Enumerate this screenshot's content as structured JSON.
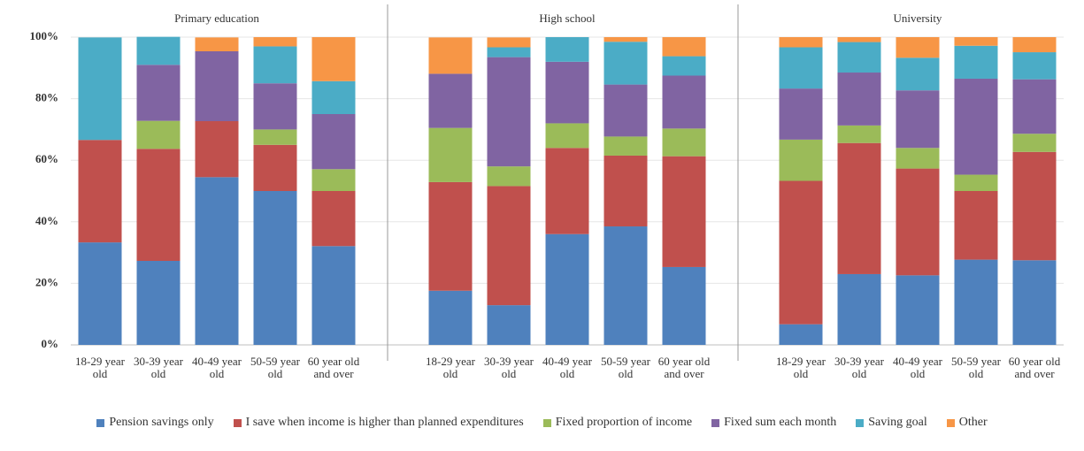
{
  "chart_data": {
    "type": "bar",
    "stacked": true,
    "ylim": [
      0,
      100
    ],
    "yticks": [
      {
        "value": 0,
        "label": "0%"
      },
      {
        "value": 20,
        "label": "20%"
      },
      {
        "value": 40,
        "label": "40%"
      },
      {
        "value": 60,
        "label": "60%"
      },
      {
        "value": 80,
        "label": "80%"
      },
      {
        "value": 100,
        "label": "100%"
      }
    ],
    "grid": true,
    "panels": [
      {
        "title": "Primary education",
        "categories": [
          "18-29 year old",
          "30-39 year old",
          "40-49 year old",
          "50-59 year old",
          "60 year old and over"
        ]
      },
      {
        "title": "High school",
        "categories": [
          "18-29 year old",
          "30-39 year old",
          "40-49 year old",
          "50-59 year old",
          "60 year old and over"
        ]
      },
      {
        "title": "University",
        "categories": [
          "18-29 year old",
          "30-39 year old",
          "40-49 year old",
          "50-59 year old",
          "60 year old and over"
        ]
      }
    ],
    "series": [
      {
        "name": "Pension savings only",
        "color": "#4f81bd",
        "values": [
          [
            33.3,
            27.3,
            54.5,
            50,
            32.1
          ],
          [
            17.6,
            12.9,
            36,
            38.5,
            25.3
          ],
          [
            6.7,
            23,
            22.6,
            27.7,
            27.5
          ]
        ]
      },
      {
        "name": "I save when income is higher than planned expenditures",
        "color": "#c0504d",
        "values": [
          [
            33.3,
            36.4,
            18.2,
            15,
            17.9
          ],
          [
            35.3,
            38.7,
            28,
            23,
            36
          ],
          [
            46.6,
            42.6,
            34.7,
            22.3,
            35.2
          ]
        ]
      },
      {
        "name": "Fixed proportion of income",
        "color": "#9bbb59",
        "values": [
          [
            0,
            9.1,
            0,
            5,
            7.1
          ],
          [
            17.6,
            6.4,
            8,
            6.2,
            9
          ],
          [
            13.4,
            5.7,
            6.7,
            5.3,
            5.9
          ]
        ]
      },
      {
        "name": "Fixed sum each month",
        "color": "#8064a2",
        "values": [
          [
            0,
            18.2,
            22.7,
            15,
            17.9
          ],
          [
            17.6,
            35.5,
            20,
            16.9,
            17.2
          ],
          [
            16.6,
            17.2,
            18.7,
            31.2,
            17.7
          ]
        ]
      },
      {
        "name": "Saving goal",
        "color": "#4bacc6",
        "values": [
          [
            33.3,
            9.1,
            0,
            12,
            10.7
          ],
          [
            0,
            3.2,
            8,
            13.9,
            6.3
          ],
          [
            13.4,
            9.9,
            10.6,
            10.7,
            8.8
          ]
        ]
      },
      {
        "name": "Other",
        "color": "#f79646",
        "values": [
          [
            0,
            0,
            4.5,
            3,
            14.3
          ],
          [
            11.8,
            3.2,
            0,
            1.5,
            6.2
          ],
          [
            3.3,
            1.6,
            6.7,
            2.8,
            4.9
          ]
        ]
      }
    ]
  }
}
